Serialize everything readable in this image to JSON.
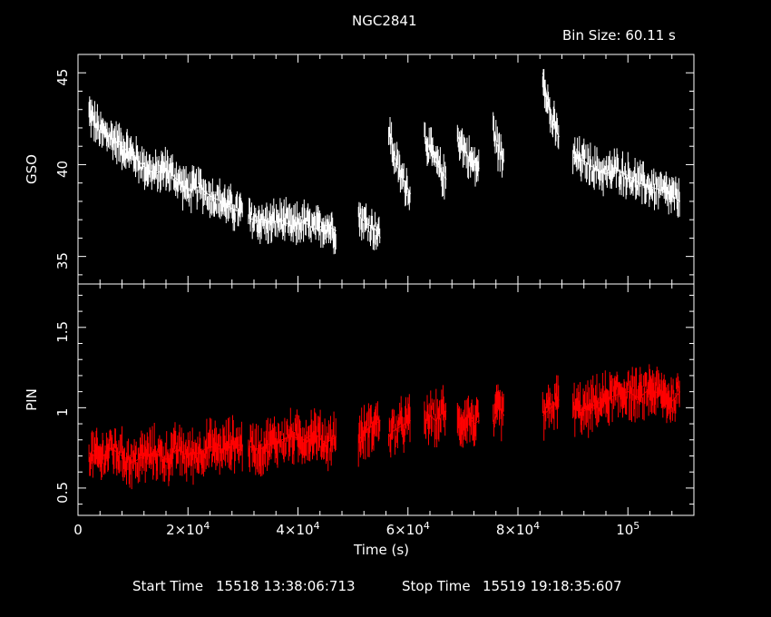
{
  "title": "NGC2841",
  "bin_size": "Bin Size: 60.11 s",
  "x_axis": {
    "label": "Time (s)",
    "range": [
      0,
      112000
    ],
    "ticks": [
      {
        "value": 0,
        "label": "0"
      },
      {
        "value": 20000,
        "label": "2×10^4"
      },
      {
        "value": 40000,
        "label": "4×10^4"
      },
      {
        "value": 60000,
        "label": "6×10^4"
      },
      {
        "value": 80000,
        "label": "8×10^4"
      },
      {
        "value": 100000,
        "label": "10^5"
      }
    ]
  },
  "footer": {
    "start_label": "Start Time",
    "start_value": "15518 13:38:06:713",
    "stop_label": "Stop Time",
    "stop_value": "15519 19:18:35:607"
  },
  "chart_data": [
    {
      "type": "line",
      "ylabel": "GSO",
      "ylim": [
        33.5,
        46
      ],
      "yticks": [
        35,
        40,
        45
      ],
      "color": "#ffffff",
      "segments": [
        {
          "x": [
            2000,
            4000,
            6000,
            8000,
            10000,
            12000,
            14000,
            16000,
            18000,
            20000,
            22000,
            24000,
            26000,
            28000,
            30000
          ],
          "y": [
            42.8,
            41.8,
            41.5,
            41.0,
            40.5,
            39.9,
            39.5,
            39.8,
            39.2,
            38.6,
            38.8,
            38.3,
            38.0,
            37.6,
            37.4
          ]
        },
        {
          "x": [
            31000,
            33000,
            35000,
            37000,
            39000,
            41000,
            43000,
            45000,
            47000
          ],
          "y": [
            37.1,
            36.9,
            36.8,
            37.0,
            36.6,
            36.9,
            36.5,
            36.7,
            36.4
          ]
        },
        {
          "x": [
            51000,
            52500,
            54000,
            55000
          ],
          "y": [
            37.2,
            36.8,
            36.5,
            36.0
          ]
        },
        {
          "x": [
            56500,
            57500,
            58500,
            59500,
            60500
          ],
          "y": [
            42.0,
            40.5,
            39.5,
            39.0,
            38.4
          ]
        },
        {
          "x": [
            63000,
            64000,
            65000,
            66000,
            67000
          ],
          "y": [
            41.6,
            40.8,
            40.2,
            39.6,
            39.2
          ]
        },
        {
          "x": [
            69000,
            70000,
            71000,
            72000,
            73000
          ],
          "y": [
            41.6,
            41.0,
            40.4,
            40.0,
            39.8
          ]
        },
        {
          "x": [
            75500,
            76500,
            77500
          ],
          "y": [
            42.0,
            40.8,
            40.2
          ]
        },
        {
          "x": [
            84500,
            86000,
            87500
          ],
          "y": [
            45.0,
            42.5,
            41.5
          ]
        },
        {
          "x": [
            90000,
            92000,
            94000,
            96000,
            98000,
            100000,
            102000,
            104000,
            106000,
            108000,
            109500
          ],
          "y": [
            40.4,
            40.2,
            39.8,
            39.5,
            39.7,
            39.4,
            39.0,
            38.8,
            38.6,
            38.3,
            38.0
          ]
        }
      ]
    },
    {
      "type": "line",
      "ylabel": "PIN",
      "ylim": [
        0.33,
        1.77
      ],
      "yticks": [
        0.5,
        1,
        1.5
      ],
      "color": "#ff0000",
      "segments": [
        {
          "x": [
            2000,
            4000,
            6000,
            8000,
            10000,
            12000,
            14000,
            16000,
            18000,
            20000,
            22000,
            24000,
            26000,
            28000,
            30000
          ],
          "y": [
            0.72,
            0.68,
            0.75,
            0.7,
            0.66,
            0.7,
            0.72,
            0.68,
            0.74,
            0.7,
            0.72,
            0.76,
            0.74,
            0.78,
            0.76
          ]
        },
        {
          "x": [
            31000,
            33000,
            35000,
            37000,
            39000,
            41000,
            43000,
            45000,
            47000
          ],
          "y": [
            0.76,
            0.74,
            0.78,
            0.8,
            0.82,
            0.8,
            0.84,
            0.78,
            0.82
          ]
        },
        {
          "x": [
            51000,
            52500,
            54000,
            55000
          ],
          "y": [
            0.8,
            0.86,
            0.9,
            0.92
          ]
        },
        {
          "x": [
            56500,
            57500,
            58500,
            59500,
            60500
          ],
          "y": [
            0.82,
            0.86,
            0.88,
            0.9,
            0.92
          ]
        },
        {
          "x": [
            63000,
            64000,
            65000,
            66000,
            67000
          ],
          "y": [
            0.9,
            0.95,
            0.92,
            0.96,
            0.98
          ]
        },
        {
          "x": [
            69000,
            70000,
            71000,
            72000,
            73000
          ],
          "y": [
            0.88,
            0.92,
            0.95,
            0.9,
            0.92
          ]
        },
        {
          "x": [
            75500,
            76500,
            77500
          ],
          "y": [
            0.9,
            1.0,
            0.95
          ]
        },
        {
          "x": [
            84500,
            86000,
            87500
          ],
          "y": [
            0.95,
            1.0,
            1.05
          ]
        },
        {
          "x": [
            90000,
            92000,
            94000,
            96000,
            98000,
            100000,
            102000,
            104000,
            106000,
            108000,
            109500
          ],
          "y": [
            1.0,
            0.98,
            1.02,
            1.05,
            1.08,
            1.1,
            1.06,
            1.12,
            1.08,
            1.04,
            1.1
          ]
        }
      ]
    }
  ]
}
